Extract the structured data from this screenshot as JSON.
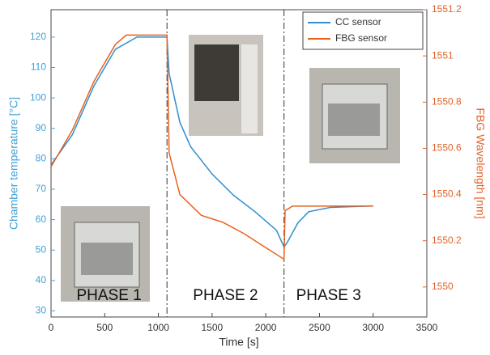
{
  "chart_data": {
    "type": "line",
    "xlabel": "Time [s]",
    "ylabel": "Chamber temperature [°C]",
    "y2label": "FBG Wavelength [nm]",
    "xlim": [
      0,
      3500
    ],
    "xticks": [
      0,
      500,
      1000,
      1500,
      2000,
      2500,
      3000,
      3500
    ],
    "ylim": [
      28,
      129
    ],
    "yticks": [
      30,
      40,
      50,
      60,
      70,
      80,
      90,
      100,
      110,
      120
    ],
    "y2lim": [
      1549.87,
      1551.2
    ],
    "y2ticks": [
      1550,
      1550.2,
      1550.4,
      1550.6,
      1550.8,
      1551,
      1551.2
    ],
    "ycolor": "#3fa0d8",
    "y2color": "#e0622a",
    "phase_boundaries": [
      1080,
      2170
    ],
    "annotations": [
      "PHASE 1",
      "PHASE 2",
      "PHASE 3"
    ],
    "legend": "upper right",
    "series": [
      {
        "name": "CC sensor",
        "color": "#2f8fd0",
        "x": [
          0,
          200,
          400,
          600,
          800,
          1080,
          1100,
          1200,
          1300,
          1500,
          1700,
          1900,
          2100,
          2170,
          2200,
          2300,
          2400,
          2600,
          3000
        ],
        "values": [
          78,
          88,
          104,
          116,
          120,
          120,
          108,
          92,
          84,
          75,
          68,
          62.6,
          56.5,
          51,
          52.5,
          59,
          62.6,
          64,
          64.5
        ]
      },
      {
        "name": "FBG sensor",
        "color": "#e8621c",
        "axis": "y2",
        "x": [
          0,
          200,
          400,
          600,
          700,
          1080,
          1100,
          1200,
          1400,
          1600,
          1800,
          2000,
          2170,
          2180,
          2250,
          3000
        ],
        "values": [
          1550.52,
          1550.68,
          1550.89,
          1551.05,
          1551.09,
          1551.09,
          1550.58,
          1550.4,
          1550.31,
          1550.28,
          1550.23,
          1550.17,
          1550.12,
          1550.33,
          1550.35,
          1550.35
        ]
      }
    ]
  }
}
